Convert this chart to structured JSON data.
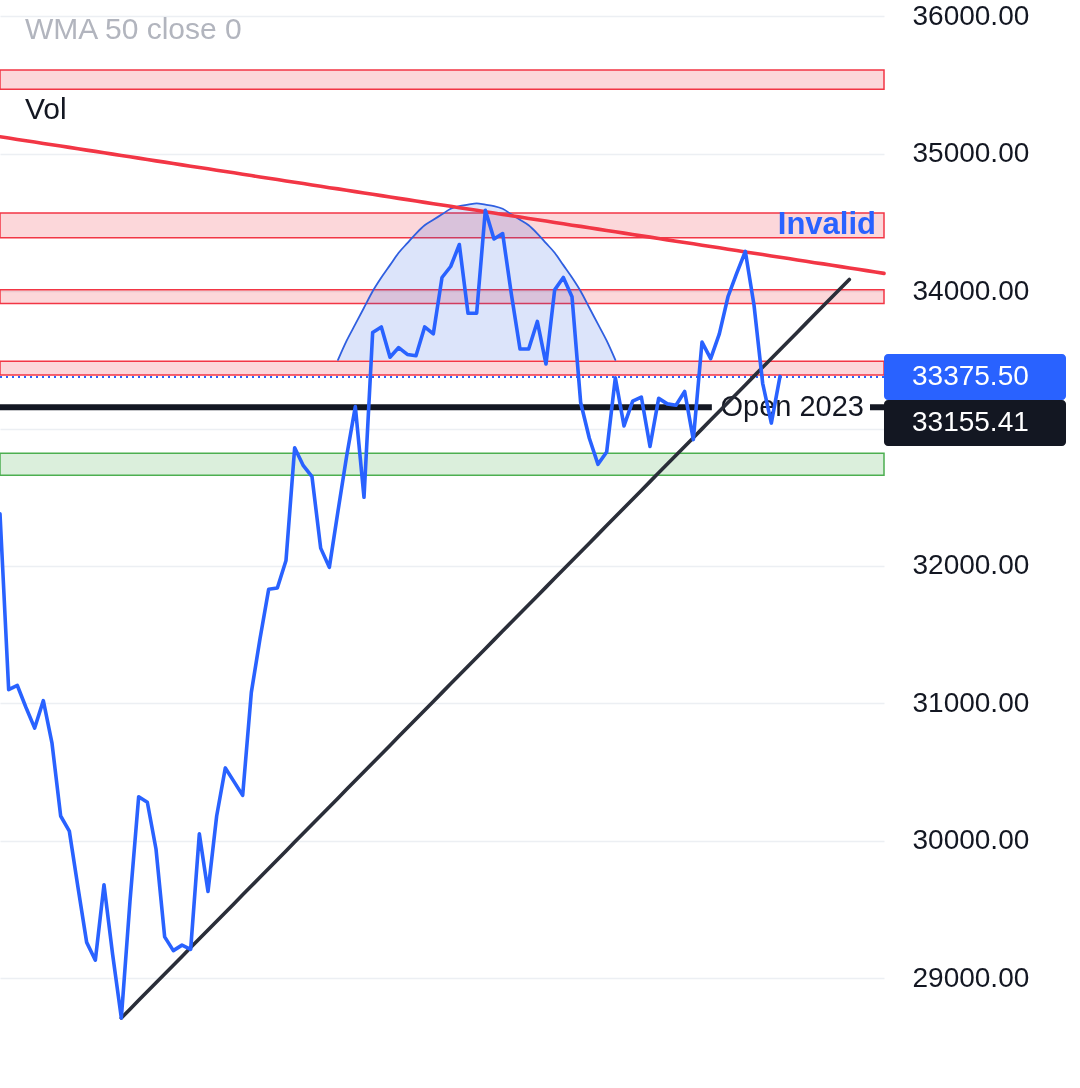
{
  "chart_data": {
    "type": "line",
    "grid": "y",
    "tick_labels": "y",
    "categories": [
      null,
      null,
      null,
      null,
      null,
      null,
      null,
      null,
      null,
      null,
      null,
      null,
      null,
      null,
      null,
      null,
      null,
      null,
      null,
      null,
      null,
      null,
      null,
      null,
      null,
      null,
      null,
      null,
      null,
      null,
      null,
      null,
      null,
      null,
      null,
      null,
      null,
      null,
      null,
      null,
      null,
      null,
      null,
      null,
      null,
      null,
      null,
      null,
      null,
      null,
      null,
      null,
      null,
      null,
      null,
      null,
      null,
      null,
      null,
      null,
      null,
      null,
      null,
      null,
      null,
      null,
      null,
      null,
      null,
      null,
      null,
      null,
      null,
      null,
      null,
      null,
      null,
      null,
      null,
      null,
      null,
      null,
      null,
      null,
      null,
      null,
      null,
      null,
      null,
      null,
      null,
      null,
      null,
      null,
      null,
      null,
      null,
      null,
      null,
      null,
      null,
      null,
      null
    ],
    "ylim": [
      28200,
      36120
    ],
    "yticks": [
      {
        "value": 29000,
        "label": "29000.00"
      },
      {
        "value": 30000,
        "label": "30000.00"
      },
      {
        "value": 31000,
        "label": "31000.00"
      },
      {
        "value": 32000,
        "label": "32000.00"
      },
      {
        "value": 33000,
        "label": null
      },
      {
        "value": 34000,
        "label": "34000.00"
      },
      {
        "value": 35000,
        "label": "35000.00"
      },
      {
        "value": 36000,
        "label": "36000.00"
      }
    ],
    "series": [
      {
        "color": "#2f5fe0",
        "values": [
          null,
          null,
          null,
          null,
          null,
          null,
          null,
          null,
          null,
          null,
          null,
          null,
          null,
          null,
          null,
          null,
          null,
          null,
          null,
          null,
          null,
          null,
          null,
          null,
          null,
          null,
          null,
          null,
          null,
          null,
          null,
          null,
          null,
          null,
          null,
          null,
          null,
          null,
          null,
          33500,
          33640,
          33760,
          33880,
          34000,
          34100,
          34190,
          34280,
          34350,
          34420,
          34480,
          34520,
          34560,
          34600,
          34620,
          34630,
          34640,
          34630,
          34620,
          34600,
          34560,
          34520,
          34480,
          34420,
          34350,
          34280,
          34190,
          34100,
          34000,
          33880,
          33760,
          33640,
          33500,
          null,
          null,
          null,
          null,
          null,
          null,
          null,
          null,
          null,
          null,
          null,
          null,
          null,
          null,
          null,
          null,
          null,
          null,
          null,
          null,
          null,
          null,
          null,
          null,
          null,
          null,
          null,
          null,
          null,
          null,
          null
        ],
        "lower": [
          null,
          null,
          null,
          null,
          null,
          null,
          null,
          null,
          null,
          null,
          null,
          null,
          null,
          null,
          null,
          null,
          null,
          null,
          null,
          null,
          null,
          null,
          null,
          null,
          null,
          null,
          null,
          null,
          null,
          null,
          null,
          null,
          null,
          null,
          null,
          null,
          null,
          null,
          null,
          33500,
          33500,
          33500,
          33500,
          33500,
          33500,
          33500,
          33500,
          33500,
          33500,
          33500,
          33500,
          33500,
          33500,
          33500,
          33500,
          33500,
          33500,
          33500,
          33500,
          33500,
          33500,
          33500,
          33500,
          33500,
          33500,
          33500,
          33500,
          33500,
          33500,
          33500,
          33500,
          33500,
          null,
          null,
          null,
          null,
          null,
          null,
          null,
          null,
          null,
          null,
          null,
          null,
          null,
          null,
          null,
          null,
          null,
          null,
          null,
          null,
          null,
          null,
          null,
          null,
          null,
          null,
          null,
          null,
          null,
          null,
          null
        ],
        "upper": [
          null,
          null,
          null,
          null,
          null,
          null,
          null,
          null,
          null,
          null,
          null,
          null,
          null,
          null,
          null,
          null,
          null,
          null,
          null,
          null,
          null,
          null,
          null,
          null,
          null,
          null,
          null,
          null,
          null,
          null,
          null,
          null,
          null,
          null,
          null,
          null,
          null,
          null,
          null,
          33500,
          33640,
          33760,
          33880,
          34000,
          34100,
          34190,
          34280,
          34350,
          34420,
          34480,
          34520,
          34560,
          34600,
          34620,
          34630,
          34640,
          34630,
          34620,
          34600,
          34560,
          34520,
          34480,
          34420,
          34350,
          34280,
          34190,
          34100,
          34000,
          33880,
          33760,
          33640,
          33500,
          null,
          null,
          null,
          null,
          null,
          null,
          null,
          null,
          null,
          null,
          null,
          null,
          null,
          null,
          null,
          null,
          null,
          null,
          null,
          null,
          null,
          null,
          null,
          null,
          null,
          null,
          null,
          null,
          null,
          null,
          null
        ]
      },
      {
        "color": "#f23645",
        "values": [
          35125,
          35115,
          35105,
          35096,
          35086,
          35076,
          35066,
          35057,
          35047,
          35037,
          35027,
          35018,
          35008,
          34998,
          34988,
          34979,
          34969,
          34959,
          34949,
          34940,
          34930,
          34920,
          34910,
          34901,
          34891,
          34881,
          34871,
          34862,
          34852,
          34842,
          34832,
          34823,
          34813,
          34803,
          34793,
          34784,
          34774,
          34764,
          34754,
          34745,
          34735,
          34725,
          34715,
          34706,
          34696,
          34686,
          34676,
          34667,
          34657,
          34647,
          34637,
          34628,
          34618,
          34608,
          34598,
          34589,
          34579,
          34569,
          34559,
          34550,
          34540,
          34530,
          34520,
          34511,
          34501,
          34491,
          34481,
          34472,
          34462,
          34452,
          34442,
          34433,
          34423,
          34413,
          34403,
          34394,
          34384,
          34374,
          34364,
          34355,
          34345,
          34335,
          34325,
          34316,
          34306,
          34296,
          34286,
          34277,
          34267,
          34257,
          34247,
          34238,
          34228,
          34218,
          34208,
          34199,
          34189,
          34179,
          34169,
          34160,
          34150,
          34140,
          34130
        ]
      },
      {
        "color": "#2a2e39",
        "values": [
          null,
          null,
          null,
          null,
          null,
          null,
          null,
          null,
          null,
          null,
          null,
          null,
          null,
          null,
          28710,
          28774,
          28838,
          28902,
          28966,
          29030,
          29094,
          29158,
          29222,
          29286,
          29350,
          29414,
          29478,
          29542,
          29606,
          29670,
          29734,
          29798,
          29862,
          29926,
          29990,
          30054,
          30118,
          30182,
          30246,
          30310,
          30374,
          30438,
          30502,
          30566,
          30630,
          30694,
          30758,
          30822,
          30886,
          30950,
          31014,
          31078,
          31142,
          31206,
          31270,
          31334,
          31398,
          31462,
          31526,
          31590,
          31654,
          31718,
          31782,
          31846,
          31910,
          31974,
          32038,
          32102,
          32166,
          32230,
          32294,
          32358,
          32422,
          32486,
          32550,
          32614,
          32678,
          32742,
          32806,
          32870,
          32934,
          32998,
          33062,
          33126,
          33190,
          33254,
          33318,
          33382,
          33446,
          33510,
          33574,
          33638,
          33702,
          33766,
          33830,
          33894,
          33958,
          34022,
          34086,
          null,
          null,
          null,
          null
        ]
      },
      {
        "color": "#2962ff",
        "values": [
          32380,
          31100,
          31130,
          30970,
          30820,
          31020,
          30710,
          30180,
          30070,
          29660,
          29260,
          29130,
          29680,
          29170,
          28710,
          29560,
          30320,
          30280,
          29940,
          29300,
          29200,
          29240,
          29210,
          30050,
          29630,
          30180,
          30530,
          30430,
          30330,
          31080,
          31470,
          31830,
          31840,
          32040,
          32860,
          32730,
          32650,
          32130,
          31990,
          32400,
          32800,
          33160,
          32500,
          33700,
          33740,
          33520,
          33590,
          33540,
          33530,
          33740,
          33690,
          34100,
          34180,
          34340,
          33840,
          33840,
          34590,
          34380,
          34420,
          33980,
          33580,
          33580,
          33780,
          33470,
          34010,
          34100,
          33960,
          33190,
          32930,
          32740,
          32830,
          33370,
          33020,
          33200,
          33230,
          32870,
          33220,
          33180,
          33170,
          33270,
          32920,
          33630,
          33510,
          33690,
          33960,
          34130,
          34290,
          33900,
          33330,
          33040,
          33380,
          null,
          null,
          null,
          null,
          null,
          null,
          null,
          null,
          null,
          null,
          null,
          null
        ]
      }
    ],
    "bands": [
      {
        "axis": "y",
        "from": 35470,
        "to": 35610,
        "color": "#f23645"
      },
      {
        "axis": "y",
        "from": 34390,
        "to": 34570,
        "color": "#f23645",
        "label": "Invalid"
      },
      {
        "axis": "y",
        "from": 33910,
        "to": 34010,
        "color": "#f23645"
      },
      {
        "axis": "y",
        "from": 33390,
        "to": 33490,
        "color": "#f23645"
      },
      {
        "axis": "y",
        "from": 32660,
        "to": 32820,
        "color": "#4caf50"
      }
    ],
    "ref_lines": [
      {
        "axis": "y",
        "value": 33155.41,
        "label": "Open 2023",
        "color": "#131722",
        "line_style": "solid"
      },
      {
        "axis": "y",
        "value": 33375.5,
        "color": "#2962ff",
        "line_style": "dotted"
      }
    ],
    "annotations": [
      "WMA 50 close 0",
      "Vol",
      "33375.50",
      "33155.41"
    ]
  }
}
